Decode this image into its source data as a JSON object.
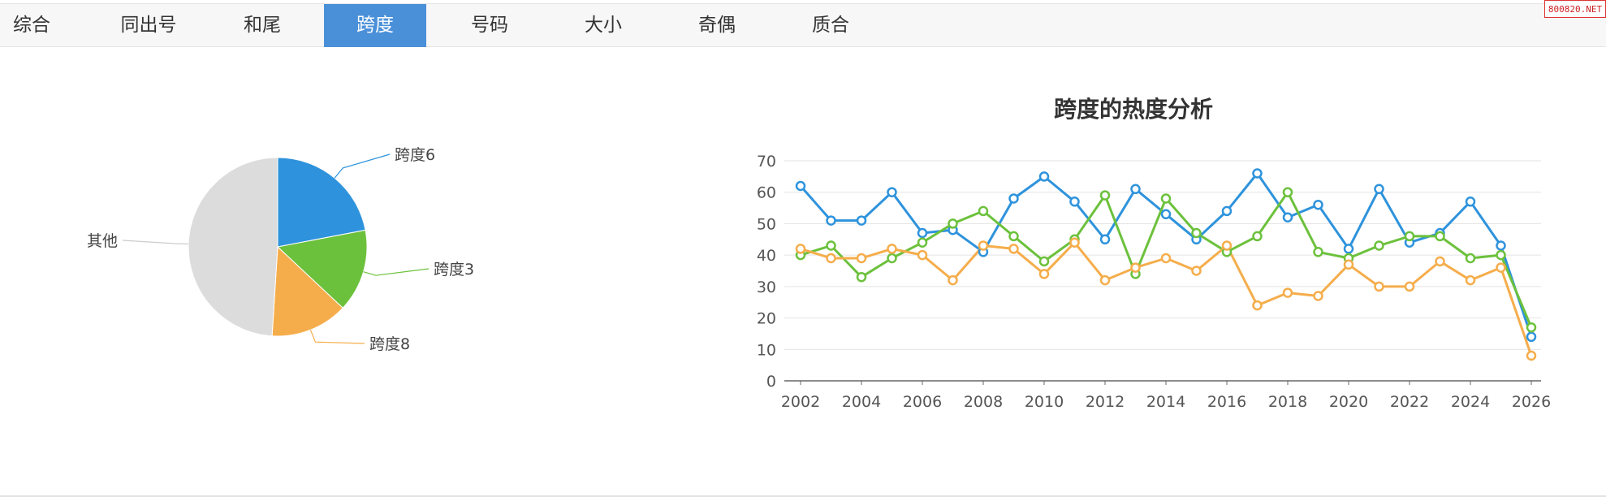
{
  "tabs": [
    {
      "label": "综合",
      "active": false
    },
    {
      "label": "同出号",
      "active": false
    },
    {
      "label": "和尾",
      "active": false
    },
    {
      "label": "跨度",
      "active": true
    },
    {
      "label": "号码",
      "active": false
    },
    {
      "label": "大小",
      "active": false
    },
    {
      "label": "奇偶",
      "active": false
    },
    {
      "label": "质合",
      "active": false
    }
  ],
  "watermark": "800820.NET",
  "chart_data": [
    {
      "type": "pie",
      "slices": [
        {
          "label": "跨度6",
          "value": 22,
          "color": "#2e93dc"
        },
        {
          "label": "跨度3",
          "value": 15,
          "color": "#6cc13c"
        },
        {
          "label": "跨度8",
          "value": 14,
          "color": "#f5ad4b"
        },
        {
          "label": "其他",
          "value": 49,
          "color": "#dcdcdc"
        }
      ]
    },
    {
      "type": "line",
      "title": "跨度的热度分析",
      "x": [
        2002,
        2003,
        2004,
        2005,
        2006,
        2007,
        2008,
        2009,
        2010,
        2011,
        2012,
        2013,
        2014,
        2015,
        2016,
        2017,
        2018,
        2019,
        2020,
        2021,
        2022,
        2023,
        2024,
        2025,
        2026
      ],
      "x_ticks": [
        "2002",
        "2004",
        "2006",
        "2008",
        "2010",
        "2012",
        "2014",
        "2016",
        "2018",
        "2020",
        "2022",
        "2024",
        "2026"
      ],
      "y_ticks": [
        "0",
        "10",
        "20",
        "30",
        "40",
        "50",
        "60",
        "70"
      ],
      "ylim": [
        0,
        70
      ],
      "grid": true,
      "series": [
        {
          "color": "#2e93dc",
          "values": [
            62,
            51,
            51,
            60,
            47,
            48,
            41,
            58,
            65,
            57,
            45,
            61,
            53,
            45,
            54,
            66,
            52,
            56,
            42,
            61,
            44,
            47,
            57,
            43,
            14
          ]
        },
        {
          "color": "#6cc13c",
          "values": [
            40,
            43,
            33,
            39,
            44,
            50,
            54,
            46,
            38,
            45,
            59,
            34,
            58,
            47,
            41,
            46,
            60,
            41,
            39,
            43,
            46,
            46,
            39,
            40,
            17
          ]
        },
        {
          "color": "#f5ad4b",
          "values": [
            42,
            39,
            39,
            42,
            40,
            32,
            43,
            42,
            34,
            44,
            32,
            36,
            39,
            35,
            43,
            24,
            28,
            27,
            37,
            30,
            30,
            38,
            32,
            36,
            8
          ]
        }
      ]
    }
  ]
}
